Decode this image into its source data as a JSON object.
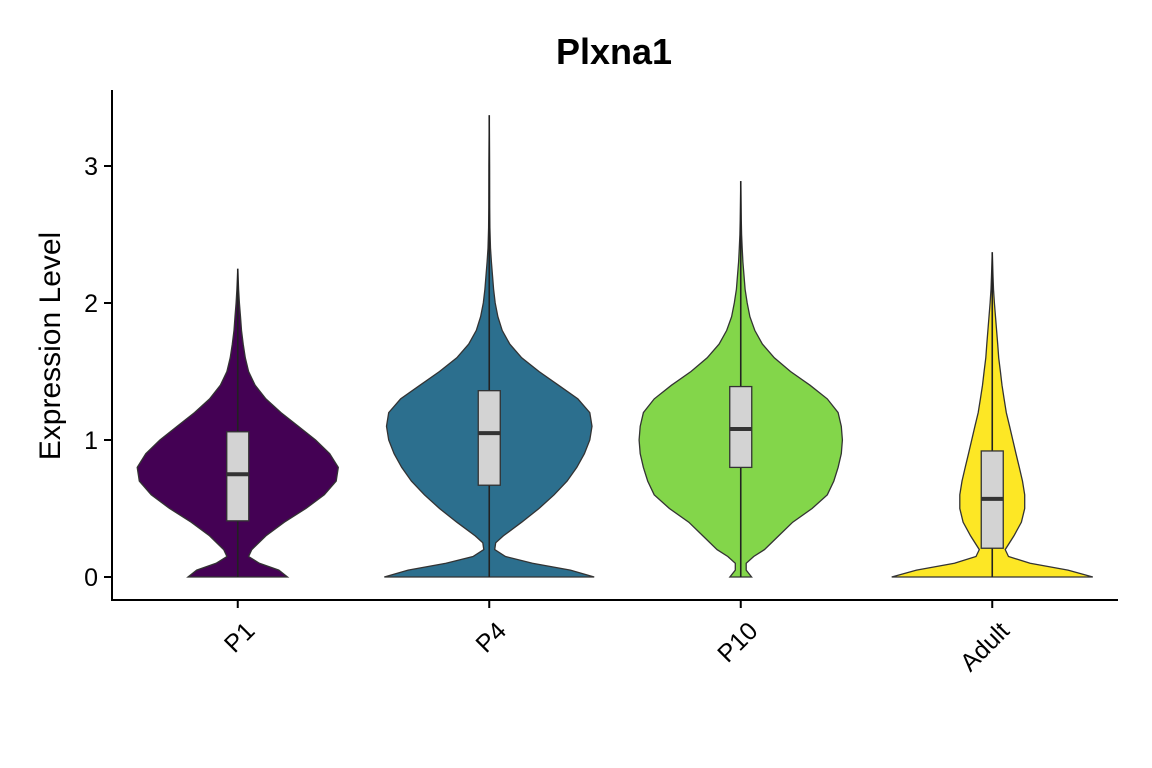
{
  "chart_data": {
    "type": "violin",
    "title": "Plxna1",
    "ylabel": "Expression Level",
    "xlabel": "",
    "ylim": [
      -0.17,
      3.55
    ],
    "yticks": [
      0,
      1,
      2,
      3
    ],
    "grid": false,
    "legend": "none",
    "categories": [
      "P1",
      "P4",
      "P10",
      "Adult"
    ],
    "groups": [
      {
        "name": "P1",
        "color": "#440154",
        "min": 0,
        "q1": 0.41,
        "median": 0.75,
        "q3": 1.06,
        "whisker_max": 2.25,
        "density": [
          [
            0,
            0.46
          ],
          [
            0.05,
            0.38
          ],
          [
            0.1,
            0.2
          ],
          [
            0.15,
            0.1
          ],
          [
            0.2,
            0.13
          ],
          [
            0.3,
            0.26
          ],
          [
            0.4,
            0.43
          ],
          [
            0.5,
            0.63
          ],
          [
            0.6,
            0.8
          ],
          [
            0.7,
            0.91
          ],
          [
            0.8,
            0.93
          ],
          [
            0.9,
            0.85
          ],
          [
            1.0,
            0.72
          ],
          [
            1.1,
            0.56
          ],
          [
            1.2,
            0.4
          ],
          [
            1.3,
            0.26
          ],
          [
            1.4,
            0.16
          ],
          [
            1.5,
            0.1
          ],
          [
            1.6,
            0.07
          ],
          [
            1.7,
            0.05
          ],
          [
            1.8,
            0.035
          ],
          [
            1.9,
            0.025
          ],
          [
            2.0,
            0.015
          ],
          [
            2.1,
            0.008
          ],
          [
            2.25,
            0
          ]
        ]
      },
      {
        "name": "P4",
        "color": "#2c6f8e",
        "min": 0,
        "q1": 0.67,
        "median": 1.05,
        "q3": 1.36,
        "whisker_max": 3.37,
        "density": [
          [
            0,
            0.97
          ],
          [
            0.05,
            0.75
          ],
          [
            0.1,
            0.4
          ],
          [
            0.15,
            0.15
          ],
          [
            0.2,
            0.05
          ],
          [
            0.25,
            0.06
          ],
          [
            0.3,
            0.13
          ],
          [
            0.4,
            0.3
          ],
          [
            0.5,
            0.46
          ],
          [
            0.6,
            0.6
          ],
          [
            0.7,
            0.72
          ],
          [
            0.8,
            0.81
          ],
          [
            0.9,
            0.88
          ],
          [
            1.0,
            0.93
          ],
          [
            1.05,
            0.94
          ],
          [
            1.1,
            0.95
          ],
          [
            1.2,
            0.93
          ],
          [
            1.3,
            0.82
          ],
          [
            1.4,
            0.64
          ],
          [
            1.5,
            0.46
          ],
          [
            1.6,
            0.3
          ],
          [
            1.7,
            0.19
          ],
          [
            1.8,
            0.12
          ],
          [
            1.9,
            0.08
          ],
          [
            2.0,
            0.055
          ],
          [
            2.1,
            0.04
          ],
          [
            2.2,
            0.03
          ],
          [
            2.3,
            0.02
          ],
          [
            2.4,
            0.012
          ],
          [
            2.55,
            0.006
          ],
          [
            2.7,
            0.004
          ],
          [
            3.0,
            0.003
          ],
          [
            3.37,
            0
          ]
        ]
      },
      {
        "name": "P10",
        "color": "#83d64a",
        "min": 0,
        "q1": 0.8,
        "median": 1.08,
        "q3": 1.39,
        "whisker_max": 2.89,
        "density": [
          [
            0,
            0.1
          ],
          [
            0.05,
            0.05
          ],
          [
            0.1,
            0.05
          ],
          [
            0.15,
            0.12
          ],
          [
            0.2,
            0.22
          ],
          [
            0.3,
            0.35
          ],
          [
            0.4,
            0.48
          ],
          [
            0.5,
            0.66
          ],
          [
            0.6,
            0.8
          ],
          [
            0.7,
            0.86
          ],
          [
            0.8,
            0.9
          ],
          [
            0.9,
            0.93
          ],
          [
            1.0,
            0.94
          ],
          [
            1.1,
            0.93
          ],
          [
            1.2,
            0.9
          ],
          [
            1.3,
            0.8
          ],
          [
            1.4,
            0.64
          ],
          [
            1.5,
            0.46
          ],
          [
            1.6,
            0.31
          ],
          [
            1.7,
            0.2
          ],
          [
            1.8,
            0.13
          ],
          [
            1.9,
            0.085
          ],
          [
            2.0,
            0.06
          ],
          [
            2.1,
            0.04
          ],
          [
            2.2,
            0.03
          ],
          [
            2.3,
            0.02
          ],
          [
            2.4,
            0.013
          ],
          [
            2.5,
            0.008
          ],
          [
            2.6,
            0.005
          ],
          [
            2.89,
            0
          ]
        ]
      },
      {
        "name": "Adult",
        "color": "#fde725",
        "min": 0,
        "q1": 0.21,
        "median": 0.57,
        "q3": 0.92,
        "whisker_max": 2.37,
        "density": [
          [
            0,
            0.93
          ],
          [
            0.05,
            0.7
          ],
          [
            0.1,
            0.35
          ],
          [
            0.15,
            0.15
          ],
          [
            0.2,
            0.12
          ],
          [
            0.3,
            0.2
          ],
          [
            0.4,
            0.27
          ],
          [
            0.5,
            0.3
          ],
          [
            0.6,
            0.3
          ],
          [
            0.7,
            0.28
          ],
          [
            0.8,
            0.25
          ],
          [
            0.9,
            0.22
          ],
          [
            1.0,
            0.19
          ],
          [
            1.1,
            0.16
          ],
          [
            1.2,
            0.13
          ],
          [
            1.3,
            0.11
          ],
          [
            1.4,
            0.09
          ],
          [
            1.5,
            0.075
          ],
          [
            1.6,
            0.06
          ],
          [
            1.7,
            0.05
          ],
          [
            1.8,
            0.04
          ],
          [
            1.9,
            0.03
          ],
          [
            2.0,
            0.02
          ],
          [
            2.1,
            0.012
          ],
          [
            2.2,
            0.007
          ],
          [
            2.37,
            0
          ]
        ]
      }
    ]
  }
}
